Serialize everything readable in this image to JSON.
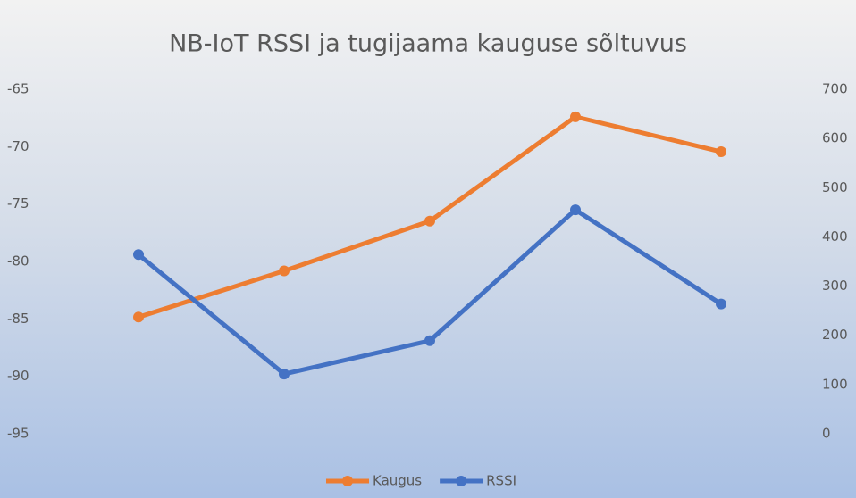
{
  "chart_data": {
    "type": "line",
    "title": "NB-IoT RSSI ja tugijaama kauguse sõltuvus",
    "categories": [
      null,
      null,
      null,
      null,
      null
    ],
    "series": [
      {
        "name": "Kaugus",
        "color": "#ed7d31",
        "axis": "y2",
        "values": [
          237,
          331,
          432,
          644,
          573
        ]
      },
      {
        "name": "RSSI",
        "color": "#4472c4",
        "values": [
          -79.4,
          -89.8,
          -86.9,
          -75.5,
          -83.7
        ]
      }
    ],
    "ylim": [
      -95,
      -65
    ],
    "yticks": [
      -95,
      -90,
      -85,
      -80,
      -75,
      -70,
      -65
    ],
    "y2lim": [
      0,
      700
    ],
    "y2ticks": [
      0,
      100,
      200,
      300,
      400,
      500,
      600,
      700
    ],
    "grid": false,
    "legend": "bottom"
  }
}
